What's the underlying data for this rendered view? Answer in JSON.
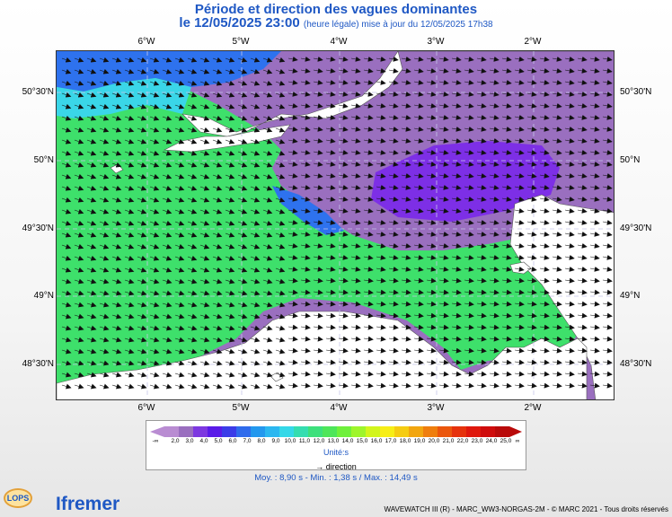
{
  "header": {
    "title": "Période et direction des vagues dominantes",
    "date": "le 12/05/2025 23:00",
    "update_note": "(heure légale) mise à jour du 12/05/2025 17h38"
  },
  "axes": {
    "lon_labels": [
      "6°W",
      "5°W",
      "4°W",
      "3°W",
      "2°W"
    ],
    "lat_labels": [
      "50°30'N",
      "50°N",
      "49°30'N",
      "49°N",
      "48°30'N"
    ]
  },
  "legend": {
    "start_label": "-∞",
    "end_label": "∞",
    "values": [
      "2,0",
      "3,0",
      "4,0",
      "5,0",
      "6,0",
      "7,0",
      "8,0",
      "9,0",
      "10,0",
      "11,0",
      "12,0",
      "13,0",
      "14,0",
      "15,0",
      "16,0",
      "17,0",
      "18,0",
      "19,0",
      "20,0",
      "21,0",
      "22,0",
      "23,0",
      "24,0",
      "25,0"
    ],
    "colors": [
      "#b98cd2",
      "#9a6fbf",
      "#7d38e0",
      "#5a1be8",
      "#3b3ce8",
      "#2f6bec",
      "#2398ee",
      "#2bb7f0",
      "#34d8e8",
      "#35ddb0",
      "#3de07c",
      "#4ee65a",
      "#6ff03c",
      "#9ef52b",
      "#d2f51c",
      "#f7ee16",
      "#f5cc12",
      "#f2a60f",
      "#ef7e0d",
      "#eb560c",
      "#e6320c",
      "#df180d",
      "#cf0c0c",
      "#b90a0a"
    ],
    "unit": "Unité:s",
    "direction_label": "direction"
  },
  "stats": "Moy. : 8,90 s   -   Min. : 1,38 s / Max. : 14,49 s",
  "credit": "WAVEWATCH III (R) - MARC_WW3-NORGAS-2M - © MARC 2021 - Tous droits réservés",
  "logos": {
    "ifremer": "Ifremer",
    "lops": "LOPS"
  },
  "map_colors": {
    "green": "#3ee06b",
    "purple": "#9a6fbf",
    "violet": "#7d2fe6",
    "blue": "#2e72ee",
    "cyan": "#3ad6e8",
    "land": "#ffffff",
    "arrow": "#111111"
  }
}
